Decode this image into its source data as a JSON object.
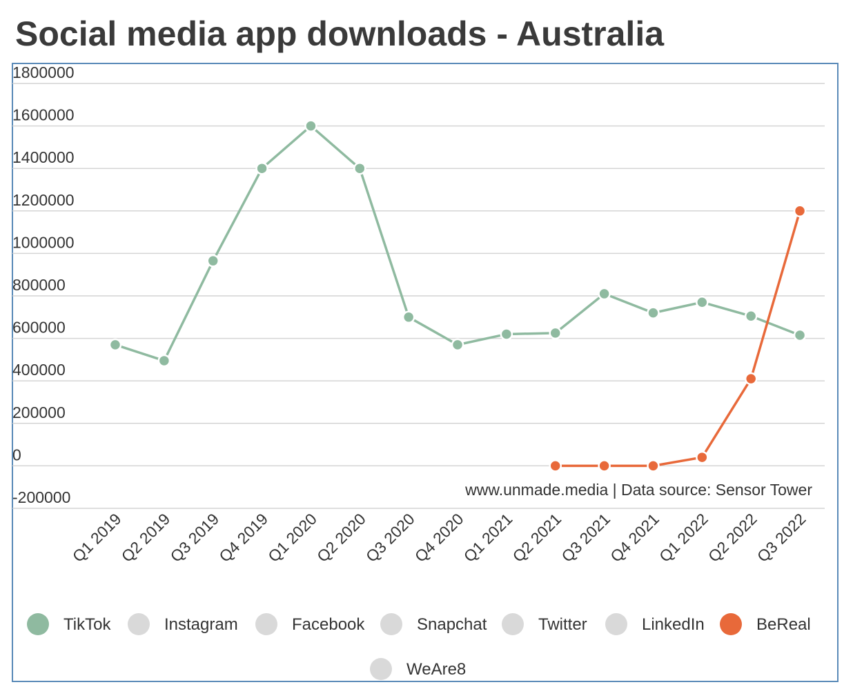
{
  "chart_data": {
    "type": "line",
    "title": "Social media app downloads - Australia",
    "annotation": "www.unmade.media | Data source: Sensor Tower",
    "categories": [
      "Q1 2019",
      "Q2 2019",
      "Q3 2019",
      "Q4 2019",
      "Q1 2020",
      "Q2 2020",
      "Q3 2020",
      "Q4 2020",
      "Q1 2021",
      "Q2 2021",
      "Q3 2021",
      "Q4 2021",
      "Q1 2022",
      "Q2 2022",
      "Q3 2022"
    ],
    "series": [
      {
        "name": "TikTok",
        "color": "#8fbaa0",
        "values": [
          570000,
          495000,
          965000,
          1400000,
          1600000,
          1400000,
          700000,
          570000,
          620000,
          625000,
          810000,
          720000,
          770000,
          705000,
          615000
        ]
      },
      {
        "name": "Instagram",
        "color": "#d9d9d9",
        "values": [
          null,
          null,
          null,
          null,
          null,
          null,
          null,
          null,
          null,
          null,
          null,
          null,
          null,
          null,
          null
        ]
      },
      {
        "name": "Facebook",
        "color": "#d9d9d9",
        "values": [
          null,
          null,
          null,
          null,
          null,
          null,
          null,
          null,
          null,
          null,
          null,
          null,
          null,
          null,
          null
        ]
      },
      {
        "name": "Snapchat",
        "color": "#d9d9d9",
        "values": [
          null,
          null,
          null,
          null,
          null,
          null,
          null,
          null,
          null,
          null,
          null,
          null,
          null,
          null,
          null
        ]
      },
      {
        "name": "Twitter",
        "color": "#d9d9d9",
        "values": [
          null,
          null,
          null,
          null,
          null,
          null,
          null,
          null,
          null,
          null,
          null,
          null,
          null,
          null,
          null
        ]
      },
      {
        "name": "LinkedIn",
        "color": "#d9d9d9",
        "values": [
          null,
          null,
          null,
          null,
          null,
          null,
          null,
          null,
          null,
          null,
          null,
          null,
          null,
          null,
          null
        ]
      },
      {
        "name": "BeReal",
        "color": "#e8693a",
        "values": [
          null,
          null,
          null,
          null,
          null,
          null,
          null,
          null,
          null,
          0,
          0,
          0,
          40000,
          410000,
          1200000
        ]
      },
      {
        "name": "WeAre8",
        "color": "#d9d9d9",
        "values": [
          null,
          null,
          null,
          null,
          null,
          null,
          null,
          null,
          null,
          null,
          null,
          null,
          null,
          null,
          null
        ]
      }
    ],
    "ylim": [
      -200000,
      1800000
    ],
    "yticks": [
      -200000,
      0,
      200000,
      400000,
      600000,
      800000,
      1000000,
      1200000,
      1400000,
      1600000,
      1800000
    ],
    "grid": true
  }
}
